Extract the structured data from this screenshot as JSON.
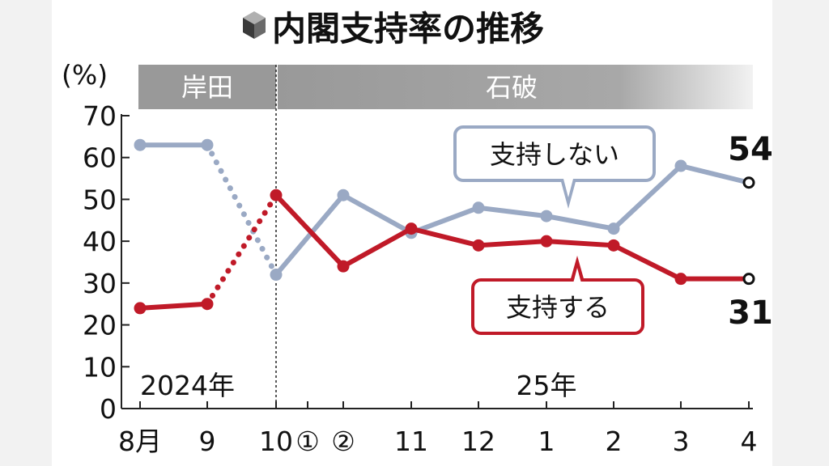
{
  "chart_data": {
    "type": "line",
    "title": "内閣支持率の推移",
    "y_unit_label": "(%)",
    "ylim": [
      0,
      70
    ],
    "yticks": [
      "0",
      "10",
      "20",
      "30",
      "40",
      "50",
      "60",
      "70"
    ],
    "x_tick_labels": [
      "8月",
      "9",
      "10",
      "①",
      "②",
      "11",
      "12",
      "1",
      "2",
      "3",
      "4"
    ],
    "year_labels": [
      "2024年",
      "25年"
    ],
    "era_labels": [
      "岸田",
      "石破"
    ],
    "series": [
      {
        "name": "支持しない",
        "color": "#9aa9c4",
        "values": [
          63,
          63,
          32,
          51,
          42,
          48,
          46,
          43,
          58,
          54
        ],
        "end_label": "54"
      },
      {
        "name": "支持する",
        "color": "#c01a28",
        "values": [
          24,
          25,
          51,
          34,
          43,
          39,
          40,
          39,
          31,
          31
        ],
        "end_label": "31"
      }
    ]
  }
}
